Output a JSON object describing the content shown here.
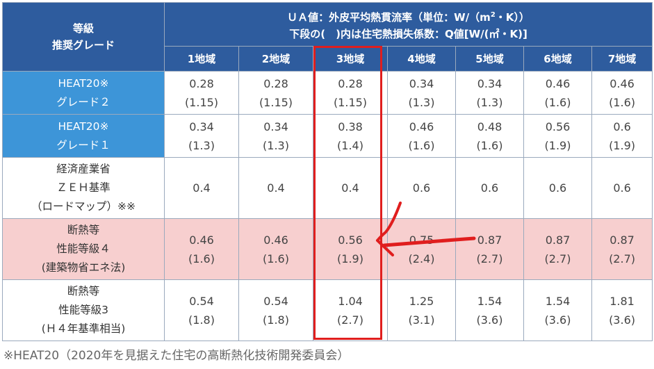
{
  "header": {
    "grade_label_line1": "等級",
    "grade_label_line2": "推奨グレード",
    "ua_line1_pre": "ＵＡ値：外皮平均熱貫流率（単位：W/（m",
    "ua_line1_sup": "2",
    "ua_line1_post": "・K））",
    "ua_line2": "下段の(　)内は住宅熱損失係数：Q値[W/(㎡・K)]"
  },
  "regions": [
    "1地域",
    "2地域",
    "3地域",
    "4地域",
    "5地域",
    "6地域",
    "7地域"
  ],
  "rows": [
    {
      "label": [
        "HEAT20※",
        "グレード２"
      ],
      "ua": [
        "0.28",
        "0.28",
        "0.28",
        "0.34",
        "0.34",
        "0.46",
        "0.46"
      ],
      "q": [
        "(1.15)",
        "(1.15)",
        "(1.15)",
        "(1.3)",
        "(1.3)",
        "(1.6)",
        "(1.6)"
      ]
    },
    {
      "label": [
        "HEAT20※",
        "グレード１"
      ],
      "ua": [
        "0.34",
        "0.34",
        "0.38",
        "0.46",
        "0.48",
        "0.56",
        "0.6"
      ],
      "q": [
        "(1.3)",
        "(1.3)",
        "(1.4)",
        "(1.6)",
        "(1.6)",
        "(1.9)",
        "(1.9)"
      ]
    },
    {
      "label": [
        "経済産業省",
        "ＺＥＨ基準",
        "（ロードマップ）※※"
      ],
      "ua": [
        "0.4",
        "0.4",
        "0.4",
        "0.6",
        "0.6",
        "0.6",
        "0.6"
      ],
      "q": []
    },
    {
      "label": [
        "断熱等",
        "性能等級４",
        "(建築物省エネ法)"
      ],
      "ua": [
        "0.46",
        "0.46",
        "0.56",
        "0.75",
        "0.87",
        "0.87",
        "0.87"
      ],
      "q": [
        "(1.6)",
        "(1.6)",
        "(1.9)",
        "(2.4)",
        "(2.7)",
        "(2.7)",
        "(2.7)"
      ]
    },
    {
      "label": [
        "断熱等",
        "性能等級3",
        "(Ｈ４年基準相当)"
      ],
      "ua": [
        "0.54",
        "0.54",
        "1.04",
        "1.25",
        "1.54",
        "1.54",
        "1.81"
      ],
      "q": [
        "(1.8)",
        "(1.8)",
        "(2.7)",
        "(3.1)",
        "(3.6)",
        "(3.6)",
        "(3.6)"
      ]
    }
  ],
  "footnote": "※HEAT20（2020年を見据えた住宅の高断熱化技術開発委員会）",
  "colors": {
    "header": "#2e5c9e",
    "label_blue": "#3d95d8",
    "pink": "#f7cfcf",
    "highlight": "#e01e1e"
  }
}
